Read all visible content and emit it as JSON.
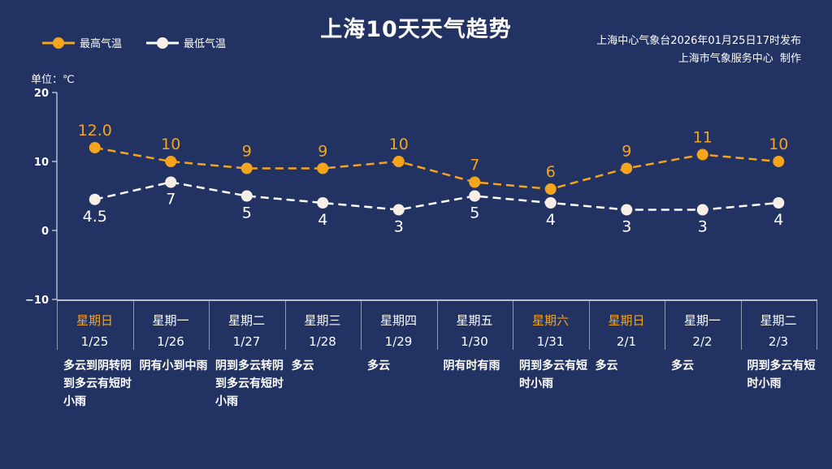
{
  "header": {
    "title": "上海10天天气趋势",
    "source_line1": "上海中心气象台2026年01月25日17时发布",
    "source_line2": "上海市气象服务中心  制作",
    "unit": "单位：℃"
  },
  "colors": {
    "background": "#213263",
    "high": "#f5a41c",
    "low": "#ffffff",
    "weekend": "#f5a41c"
  },
  "chart_data": {
    "type": "line",
    "title": "上海10天天气趋势",
    "ylabel": "单位：℃",
    "ylim": [
      -10,
      20
    ],
    "yticks": [
      "20",
      "10",
      "0",
      "−10"
    ],
    "ytick_values": [
      20,
      10,
      0,
      -10
    ],
    "categories": [
      "1/25",
      "1/26",
      "1/27",
      "1/28",
      "1/29",
      "1/30",
      "1/31",
      "2/1",
      "2/2",
      "2/3"
    ],
    "legend": "top-left",
    "series": [
      {
        "name": "最高气温",
        "values": [
          12.0,
          10,
          9,
          9,
          10,
          7,
          6,
          9,
          11,
          10
        ],
        "labels": [
          "12.0",
          "10",
          "9",
          "9",
          "10",
          "7",
          "6",
          "9",
          "11",
          "10"
        ],
        "color": "#f5a41c",
        "dash": true
      },
      {
        "name": "最低气温",
        "values": [
          4.5,
          7,
          5,
          4,
          3,
          5,
          4,
          3,
          3,
          4
        ],
        "labels": [
          "4.5",
          "7",
          "5",
          "4",
          "3",
          "5",
          "4",
          "3",
          "3",
          "4"
        ],
        "color": "#ffffff",
        "dash": true
      }
    ]
  },
  "days": [
    {
      "weekday": "星期日",
      "date": "1/25",
      "weather": "多云到阴转阴到多云有短时小雨",
      "weekend": true
    },
    {
      "weekday": "星期一",
      "date": "1/26",
      "weather": "阴有小到中雨",
      "weekend": false
    },
    {
      "weekday": "星期二",
      "date": "1/27",
      "weather": "阴到多云转阴到多云有短时小雨",
      "weekend": false
    },
    {
      "weekday": "星期三",
      "date": "1/28",
      "weather": "多云",
      "weekend": false
    },
    {
      "weekday": "星期四",
      "date": "1/29",
      "weather": "多云",
      "weekend": false
    },
    {
      "weekday": "星期五",
      "date": "1/30",
      "weather": "阴有时有雨",
      "weekend": false
    },
    {
      "weekday": "星期六",
      "date": "1/31",
      "weather": "阴到多云有短时小雨",
      "weekend": true
    },
    {
      "weekday": "星期日",
      "date": "2/1",
      "weather": "多云",
      "weekend": true
    },
    {
      "weekday": "星期一",
      "date": "2/2",
      "weather": "多云",
      "weekend": false
    },
    {
      "weekday": "星期二",
      "date": "2/3",
      "weather": "阴到多云有短时小雨",
      "weekend": false
    }
  ]
}
